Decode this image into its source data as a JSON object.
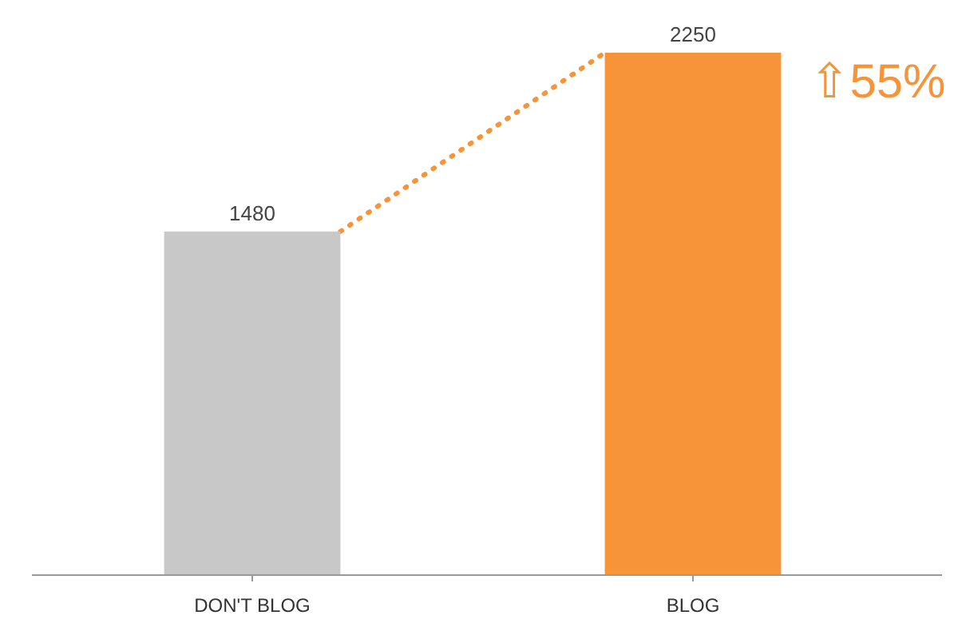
{
  "chart_data": {
    "type": "bar",
    "categories": [
      "DON'T BLOG",
      "BLOG"
    ],
    "values": [
      1480,
      2250
    ],
    "colors": [
      "#c8c8c8",
      "#f7943a"
    ],
    "data_labels": true,
    "annotations": [
      "⇧55%"
    ]
  }
}
